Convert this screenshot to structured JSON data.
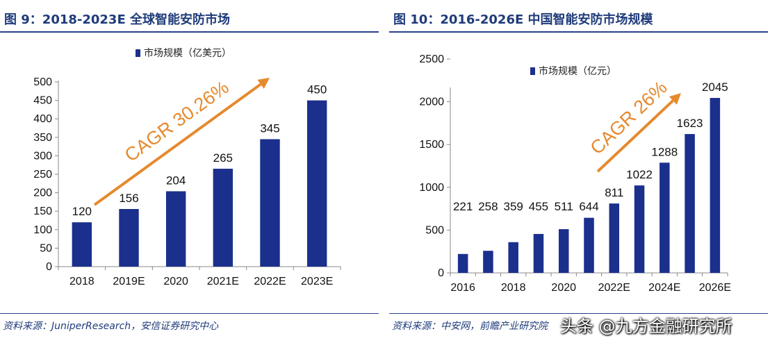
{
  "chart_data": [
    {
      "type": "bar",
      "title": "图 9：2018-2023E 全球智能安防市场",
      "categories": [
        "2018",
        "2019E",
        "2020",
        "2021E",
        "2022E",
        "2023E"
      ],
      "series": [
        {
          "name": "市场规模（亿美元）",
          "values": [
            120,
            156,
            204,
            265,
            345,
            450
          ]
        }
      ],
      "data_labels": [
        "120",
        "156",
        "204",
        "265",
        "345",
        "450"
      ],
      "xlabel": "",
      "ylabel": "",
      "ylim": [
        0,
        500
      ],
      "yticks": [
        0,
        50,
        100,
        150,
        200,
        250,
        300,
        350,
        400,
        450,
        500
      ],
      "grid": false,
      "legend_position": "top-center",
      "annotation": "CAGR 30.26%",
      "bar_color": "#1b2f8c",
      "annotation_color": "#e58a2e",
      "source": "资料来源：JuniperResearch，安信证券研究中心"
    },
    {
      "type": "bar",
      "title": "图 10：2016-2026E 中国智能安防市场规模",
      "categories": [
        "2016",
        "2017",
        "2018",
        "2019",
        "2020",
        "2021",
        "2022E",
        "2023E",
        "2024E",
        "2025E",
        "2026E"
      ],
      "xtick_labels": [
        "2016",
        "2018",
        "2020",
        "2022E",
        "2024E",
        "2026E"
      ],
      "series": [
        {
          "name": "市场规模（亿元）",
          "values": [
            221,
            258,
            359,
            455,
            511,
            644,
            811,
            1022,
            1288,
            1623,
            2045
          ]
        }
      ],
      "data_labels": [
        "221",
        "258",
        "359",
        "455",
        "511",
        "644",
        "811",
        "1022",
        "1288",
        "1623",
        "2045"
      ],
      "xlabel": "",
      "ylabel": "",
      "ylim": [
        0,
        2500
      ],
      "yticks": [
        0,
        500,
        1000,
        1500,
        2000,
        2500
      ],
      "grid": false,
      "legend_position": "top-center",
      "annotation": "CAGR 26%",
      "bar_color": "#1b2f8c",
      "annotation_color": "#e58a2e",
      "source": "资料来源：中安网，前瞻产业研究院"
    }
  ],
  "watermark": "头条 @九方金融研究所"
}
